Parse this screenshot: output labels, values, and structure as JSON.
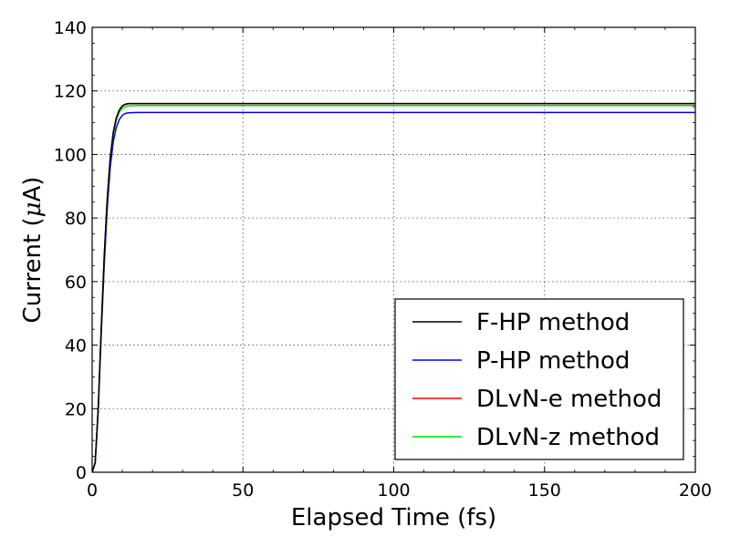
{
  "chart_data": {
    "type": "line",
    "xlabel": "Elapsed Time (fs)",
    "ylabel_prefix": "Current (",
    "ylabel_mu": "μ",
    "ylabel_suffix": "A)",
    "xlim": [
      0,
      200
    ],
    "ylim": [
      0,
      140
    ],
    "xticks": [
      0,
      50,
      100,
      150,
      200
    ],
    "yticks": [
      0,
      20,
      40,
      60,
      80,
      100,
      120,
      140
    ],
    "grid": true,
    "legend_position": "lower-right",
    "series": [
      {
        "name": "F-HP method",
        "color": "#000000",
        "x": [
          0,
          1,
          2,
          3,
          4,
          5,
          6,
          7,
          8,
          9,
          10,
          11,
          12,
          15,
          20,
          50,
          100,
          150,
          200
        ],
        "y": [
          0,
          3,
          20,
          45,
          68,
          86,
          99,
          107,
          111.5,
          114,
          115.3,
          115.8,
          116.0,
          116.0,
          116.0,
          116.0,
          116.0,
          116.0,
          116.0
        ]
      },
      {
        "name": "P-HP method",
        "color": "#0000ff",
        "x": [
          0,
          1,
          2,
          3,
          4,
          5,
          6,
          7,
          8,
          9,
          10,
          11,
          12,
          15,
          20,
          50,
          100,
          150,
          200
        ],
        "y": [
          0,
          3,
          19,
          43,
          65,
          83,
          96,
          104,
          108.5,
          111,
          112.3,
          112.9,
          113.1,
          113.2,
          113.2,
          113.2,
          113.2,
          113.2,
          113.2
        ]
      },
      {
        "name": "DLvN-e method",
        "color": "#ff0000",
        "x": [
          0,
          1,
          2,
          3,
          4,
          5,
          6,
          7,
          8,
          9,
          10,
          11,
          12,
          15,
          20,
          50,
          100,
          150,
          200
        ],
        "y": [
          0,
          3,
          20,
          45,
          68,
          86,
          99,
          107,
          111.5,
          114,
          115.3,
          115.8,
          116.0,
          116.0,
          116.0,
          116.0,
          116.0,
          116.0,
          116.0
        ]
      },
      {
        "name": "DLvN-z method",
        "color": "#00dd00",
        "x": [
          0,
          1,
          2,
          3,
          4,
          5,
          6,
          7,
          8,
          9,
          10,
          11,
          12,
          15,
          20,
          50,
          100,
          150,
          200
        ],
        "y": [
          0,
          3,
          20,
          44.5,
          67.5,
          85.5,
          98.5,
          106.3,
          110.8,
          113.3,
          114.6,
          115.1,
          115.3,
          115.4,
          115.4,
          115.4,
          115.4,
          115.4,
          115.4
        ]
      }
    ]
  }
}
